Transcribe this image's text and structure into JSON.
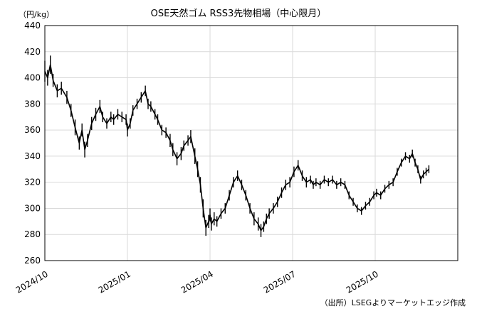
{
  "chart_data": {
    "type": "line",
    "title": "OSE天然ゴム RSS3先物相場（中心限月）",
    "unit_label": "（円/kg）",
    "source": "（出所）LSEGよりマーケットエッジ作成",
    "ylim": [
      260,
      440
    ],
    "yticks": [
      260,
      280,
      300,
      320,
      340,
      360,
      380,
      400,
      420,
      440
    ],
    "xticks": [
      "2024/10",
      "2025/01",
      "2025/04",
      "2025/07",
      "2025/10"
    ],
    "xtick_positions": [
      0,
      3,
      6,
      9,
      12
    ],
    "xlim": [
      0,
      15
    ],
    "grid": true,
    "series": [
      {
        "x": [
          0.0,
          0.1,
          0.2,
          0.3,
          0.45,
          0.6,
          0.8,
          0.95,
          1.1,
          1.25,
          1.35,
          1.45,
          1.55,
          1.7,
          1.85,
          2.0,
          2.1,
          2.25,
          2.4,
          2.5,
          2.65,
          2.8,
          2.95,
          3.0,
          3.1,
          3.2,
          3.35,
          3.5,
          3.65,
          3.75,
          3.85,
          4.0,
          4.1,
          4.25,
          4.4,
          4.55,
          4.65,
          4.8,
          4.95,
          5.05,
          5.2,
          5.3,
          5.45,
          5.55,
          5.65,
          5.75,
          5.85,
          5.95,
          6.0,
          6.05,
          6.15,
          6.25,
          6.4,
          6.55,
          6.7,
          6.85,
          7.0,
          7.15,
          7.3,
          7.45,
          7.6,
          7.75,
          7.85,
          7.95,
          8.05,
          8.15,
          8.3,
          8.45,
          8.6,
          8.75,
          8.9,
          9.05,
          9.2,
          9.35,
          9.5,
          9.65,
          9.75,
          9.85,
          10.0,
          10.15,
          10.3,
          10.45,
          10.6,
          10.75,
          10.9,
          11.05,
          11.2,
          11.35,
          11.5,
          11.65,
          11.8,
          11.95,
          12.05,
          12.2,
          12.35,
          12.5,
          12.65,
          12.8,
          12.95,
          13.1,
          13.25,
          13.35,
          13.45,
          13.55,
          13.65,
          13.75,
          13.85,
          13.95
        ],
        "values": [
          405,
          400,
          410,
          398,
          390,
          392,
          385,
          375,
          362,
          350,
          360,
          345,
          352,
          365,
          372,
          378,
          370,
          365,
          370,
          368,
          372,
          370,
          368,
          360,
          365,
          375,
          380,
          385,
          390,
          380,
          378,
          372,
          368,
          360,
          358,
          352,
          345,
          338,
          342,
          348,
          352,
          355,
          340,
          330,
          318,
          300,
          285,
          290,
          295,
          288,
          292,
          290,
          296,
          300,
          310,
          320,
          325,
          318,
          310,
          300,
          292,
          288,
          283,
          286,
          292,
          296,
          300,
          305,
          312,
          318,
          320,
          328,
          333,
          325,
          320,
          322,
          318,
          320,
          318,
          322,
          320,
          322,
          318,
          320,
          318,
          310,
          305,
          300,
          298,
          302,
          305,
          310,
          312,
          310,
          315,
          318,
          320,
          328,
          335,
          340,
          338,
          342,
          335,
          330,
          322,
          326,
          328,
          330
        ],
        "low_spread": [
          8,
          6,
          7,
          5,
          5,
          5,
          5,
          5,
          6,
          5,
          5,
          6,
          5,
          5,
          5,
          5,
          4,
          4,
          4,
          4,
          4,
          4,
          4,
          5,
          4,
          4,
          4,
          4,
          4,
          4,
          4,
          4,
          4,
          4,
          4,
          5,
          5,
          5,
          5,
          4,
          4,
          5,
          6,
          6,
          6,
          7,
          6,
          5,
          5,
          5,
          5,
          4,
          4,
          4,
          4,
          4,
          4,
          4,
          4,
          4,
          5,
          5,
          5,
          4,
          4,
          4,
          4,
          4,
          4,
          4,
          4,
          4,
          4,
          4,
          4,
          3,
          3,
          3,
          3,
          3,
          3,
          3,
          3,
          3,
          3,
          3,
          3,
          3,
          3,
          3,
          3,
          3,
          3,
          3,
          3,
          3,
          3,
          3,
          3,
          3,
          3,
          3,
          3,
          3,
          3,
          3,
          3,
          3
        ]
      }
    ]
  }
}
